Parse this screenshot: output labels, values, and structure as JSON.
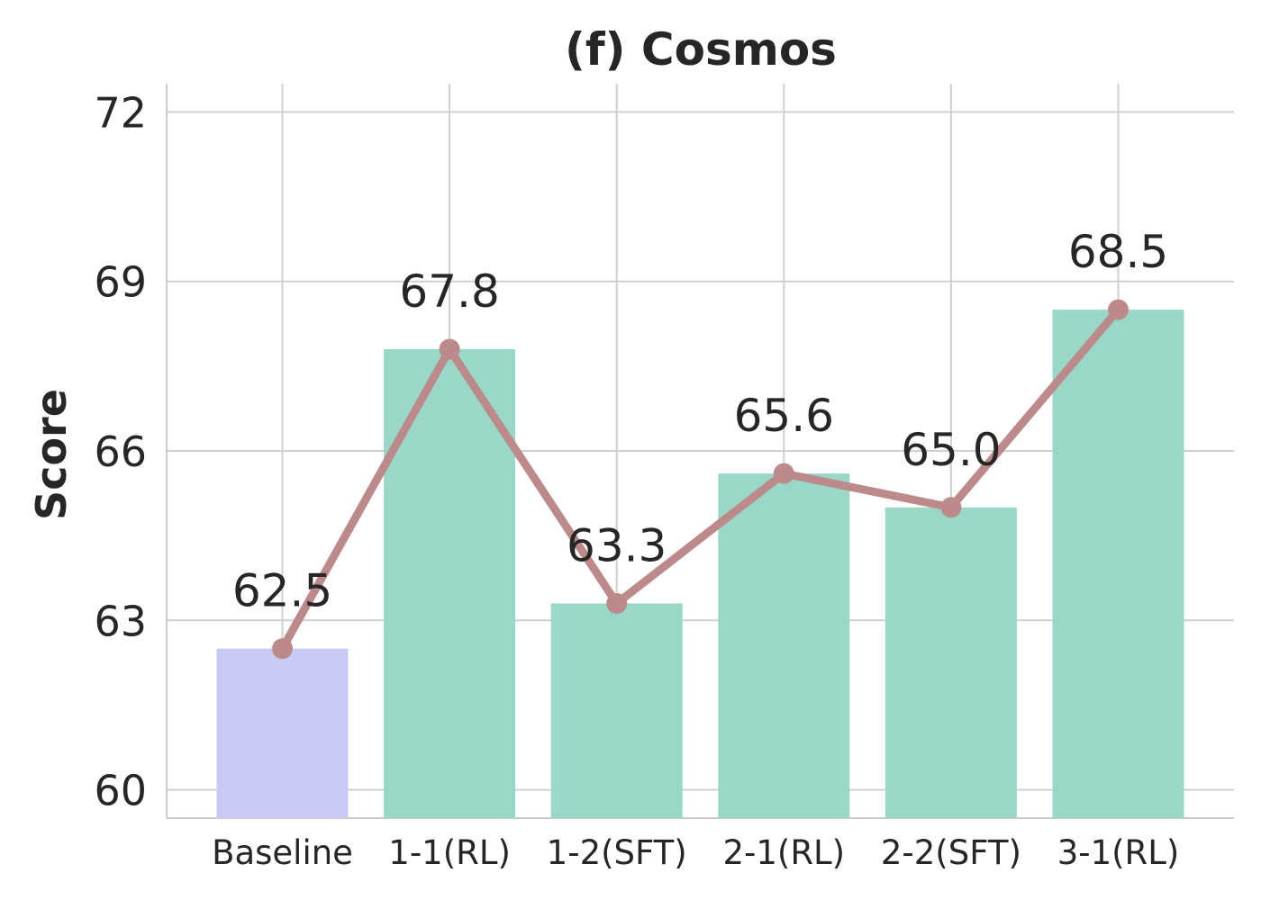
{
  "chart_data": {
    "type": "bar",
    "title": "(f) Cosmos",
    "xlabel": "",
    "ylabel": "Score",
    "categories": [
      "Baseline",
      "1-1(RL)",
      "1-2(SFT)",
      "2-1(RL)",
      "2-2(SFT)",
      "3-1(RL)"
    ],
    "values": [
      62.5,
      67.8,
      63.3,
      65.6,
      65.0,
      68.5
    ],
    "data_labels": [
      "62.5",
      "67.8",
      "63.3",
      "65.6",
      "65.0",
      "68.5"
    ],
    "ylim": [
      59.5,
      72.5
    ],
    "yticks": [
      60,
      63,
      66,
      69,
      72
    ],
    "grid": true,
    "line_overlay": true,
    "colors": {
      "baseline_bar": "#c8caf5",
      "bar": "#99d8c7",
      "line": "#bc8a8a",
      "text": "#262626",
      "grid": "#d0d0d0"
    }
  }
}
